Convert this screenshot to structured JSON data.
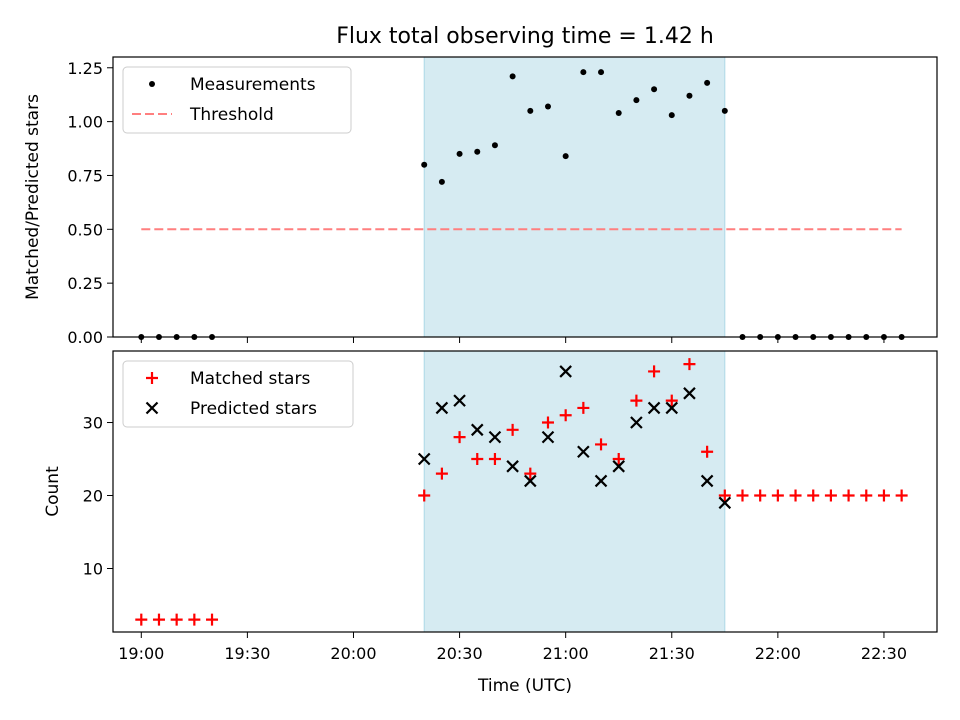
{
  "chart_data": {
    "title": "Flux total observing time = 1.42 h",
    "colors": {
      "measure": "#000000",
      "threshold": "#ff7f7f",
      "matched": "#ff0000",
      "predicted": "#000000",
      "span": "#add8e6"
    },
    "x_axis": {
      "label": "Time (UTC)",
      "tick_labels": [
        "19:00",
        "19:30",
        "20:00",
        "20:30",
        "21:00",
        "21:30",
        "22:00",
        "22:30"
      ],
      "range": [
        "18:52",
        "22:45"
      ]
    },
    "observing_window": [
      "20:20",
      "21:45"
    ],
    "panels": [
      {
        "type": "scatter",
        "ylabel": "Matched/Predicted stars",
        "ylim": [
          0,
          1.3
        ],
        "yticks": [
          "0.00",
          "0.25",
          "0.50",
          "0.75",
          "1.00",
          "1.25"
        ],
        "legend": {
          "position": "top-left",
          "entries": [
            "Measurements",
            "Threshold"
          ]
        },
        "series": [
          {
            "name": "Measurements",
            "marker": "dot",
            "x": [
              "19:00",
              "19:05",
              "19:10",
              "19:15",
              "19:20",
              "20:20",
              "20:25",
              "20:30",
              "20:35",
              "20:40",
              "20:45",
              "20:50",
              "20:55",
              "21:00",
              "21:05",
              "21:10",
              "21:15",
              "21:20",
              "21:25",
              "21:30",
              "21:35",
              "21:40",
              "21:45",
              "21:50",
              "21:55",
              "22:00",
              "22:05",
              "22:10",
              "22:15",
              "22:20",
              "22:25",
              "22:30",
              "22:35"
            ],
            "y": [
              0,
              0,
              0,
              0,
              0,
              0.8,
              0.72,
              0.85,
              0.86,
              0.89,
              1.21,
              1.05,
              1.07,
              0.84,
              1.23,
              1.23,
              1.04,
              1.1,
              1.15,
              1.03,
              1.12,
              1.18,
              1.05,
              0,
              0,
              0,
              0,
              0,
              0,
              0,
              0,
              0,
              0
            ]
          },
          {
            "name": "Threshold",
            "style": "dashed",
            "x": [
              "19:00",
              "22:35"
            ],
            "y": [
              0.5,
              0.5
            ]
          }
        ]
      },
      {
        "type": "scatter",
        "ylabel": "Count",
        "ylim": [
          1.3,
          39.8
        ],
        "yticks": [
          "10",
          "20",
          "30"
        ],
        "legend": {
          "position": "top-left",
          "entries": [
            "Matched stars",
            "Predicted stars"
          ]
        },
        "series": [
          {
            "name": "Matched stars",
            "marker": "plus",
            "x": [
              "19:00",
              "19:05",
              "19:10",
              "19:15",
              "19:20",
              "20:20",
              "20:25",
              "20:30",
              "20:35",
              "20:40",
              "20:45",
              "20:50",
              "20:55",
              "21:00",
              "21:05",
              "21:10",
              "21:15",
              "21:20",
              "21:25",
              "21:30",
              "21:35",
              "21:40",
              "21:45",
              "21:50",
              "21:55",
              "22:00",
              "22:05",
              "22:10",
              "22:15",
              "22:20",
              "22:25",
              "22:30",
              "22:35"
            ],
            "y": [
              3,
              3,
              3,
              3,
              3,
              20,
              23,
              28,
              25,
              25,
              29,
              23,
              30,
              31,
              32,
              27,
              25,
              33,
              37,
              33,
              38,
              26,
              20,
              20,
              20,
              20,
              20,
              20,
              20,
              20,
              20,
              20,
              20
            ]
          },
          {
            "name": "Predicted stars",
            "marker": "x",
            "x": [
              "20:20",
              "20:25",
              "20:30",
              "20:35",
              "20:40",
              "20:45",
              "20:50",
              "20:55",
              "21:00",
              "21:05",
              "21:10",
              "21:15",
              "21:20",
              "21:25",
              "21:30",
              "21:35",
              "21:40",
              "21:45"
            ],
            "y": [
              25,
              32,
              33,
              29,
              28,
              24,
              22,
              28,
              37,
              26,
              22,
              24,
              30,
              32,
              32,
              34,
              22,
              19
            ]
          }
        ]
      }
    ]
  }
}
